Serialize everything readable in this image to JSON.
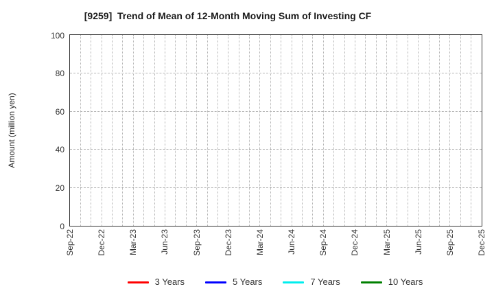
{
  "chart_data": {
    "type": "line",
    "title": "[9259]  Trend of Mean of 12-Month Moving Sum of Investing CF",
    "xlabel": "",
    "ylabel": "Amount (million yen)",
    "ylim": [
      0,
      100
    ],
    "yticks": [
      0,
      20,
      40,
      60,
      80,
      100
    ],
    "x_tick_labels": [
      "Sep-22",
      "Dec-22",
      "Mar-23",
      "Jun-23",
      "Sep-23",
      "Dec-23",
      "Mar-24",
      "Jun-24",
      "Sep-24",
      "Dec-24",
      "Mar-25",
      "Jun-25",
      "Sep-25",
      "Dec-25"
    ],
    "x_months_between_labeled_ticks": 3,
    "x_total_month_intervals": 39,
    "grid": true,
    "grid_style": {
      "vertical": "dotted monthly",
      "horizontal": "dashed at y ticks",
      "color": "#b3b3b3"
    },
    "axis_border_color": "#333333",
    "legend_position": "bottom-center",
    "series": [
      {
        "name": "3 Years",
        "color": "#ff0000",
        "values": []
      },
      {
        "name": "5 Years",
        "color": "#0000ff",
        "values": []
      },
      {
        "name": "7 Years",
        "color": "#00eeee",
        "values": []
      },
      {
        "name": "10 Years",
        "color": "#008000",
        "values": []
      }
    ],
    "data_note": "No series data is plotted; the plot area is empty."
  }
}
